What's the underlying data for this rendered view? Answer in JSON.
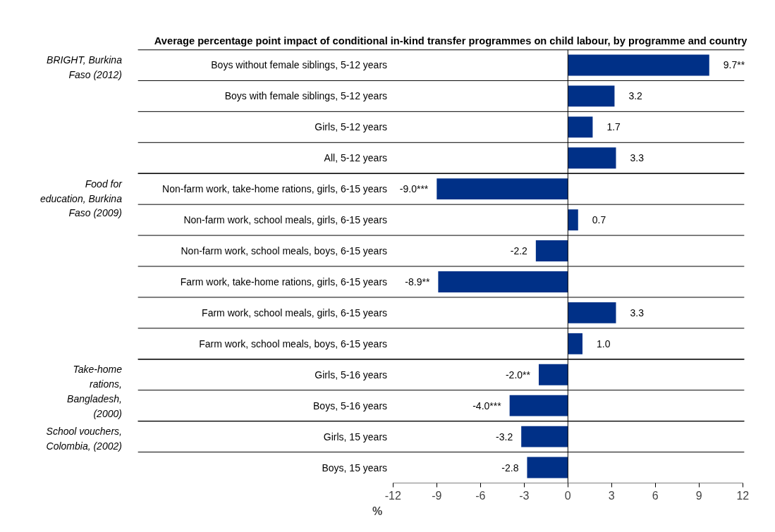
{
  "chart_data": {
    "type": "bar",
    "orientation": "horizontal",
    "title": "Average percentage point impact of conditional in-kind transfer programmes on child labour, by programme and country",
    "xlabel": "%",
    "categories": [
      "Boys without female siblings, 5-12 years",
      "Boys with female siblings, 5-12 years",
      "Girls, 5-12 years",
      "All, 5-12 years",
      "Non-farm work, take-home rations, girls, 6-15 years",
      "Non-farm work, school meals, girls, 6-15 years",
      "Non-farm work, school meals, boys, 6-15 years",
      "Farm work, take-home rations, girls, 6-15 years",
      "Farm work, school meals, girls, 6-15 years",
      "Farm work, school meals, boys, 6-15 years",
      "Girls, 5-16 years",
      "Boys, 5-16 years",
      "Girls, 15 years",
      "Boys, 15 years"
    ],
    "values": [
      9.7,
      3.2,
      1.7,
      3.3,
      -9.0,
      0.7,
      -2.2,
      -8.9,
      3.3,
      1.0,
      -2.0,
      -4.0,
      -3.2,
      -2.8
    ],
    "value_labels": [
      "9.7**",
      "3.2",
      "1.7",
      "3.3",
      "-9.0***",
      "0.7",
      "-2.2",
      "-8.9**",
      "3.3",
      "1.0",
      "-2.0**",
      "-4.0***",
      "-3.2",
      "-2.8"
    ],
    "color": "#003087",
    "xlim": [
      -12,
      12
    ],
    "xticks": [
      -12,
      -9,
      -6,
      -3,
      0,
      3,
      6,
      9,
      12
    ],
    "ref_lines": [
      {
        "axis": "x",
        "value": 0,
        "label": null,
        "color": "#000000"
      }
    ],
    "annotations": [
      "BRIGHT, Burkina\nFaso (2012)",
      "Food for\neducation, Burkina\nFaso (2009)",
      "Take-home\nrations,\nBangladesh,\n(2000)",
      "School vouchers,\nColombia, (2002)"
    ],
    "grid": "y"
  }
}
